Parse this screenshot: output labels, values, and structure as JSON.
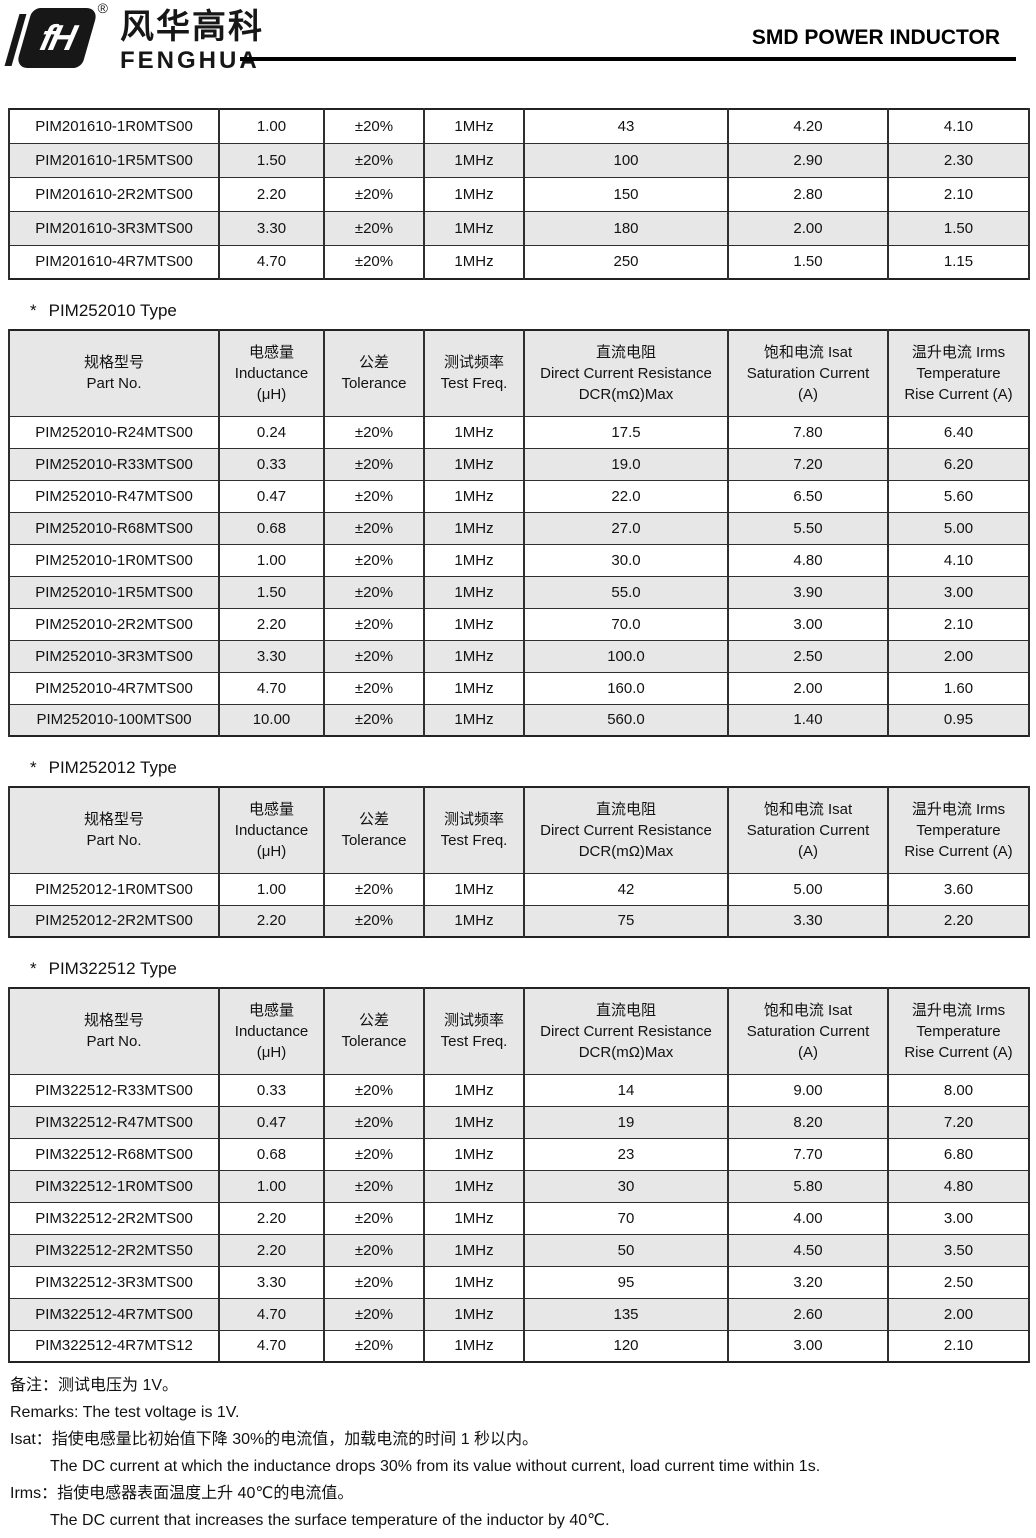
{
  "header": {
    "logo_mark": "fH",
    "registered": "®",
    "brand_cn": "风华高科",
    "brand_en": "FENGHUA",
    "title": "SMD POWER INDUCTOR"
  },
  "cols": {
    "part_cn": "规格型号",
    "part_en": "Part No.",
    "ind_cn": "电感量",
    "ind_en": "Inductance",
    "ind_unit": "(μH)",
    "tol_cn": "公差",
    "tol_en": "Tolerance",
    "freq_cn": "测试频率",
    "freq_en": "Test Freq.",
    "dcr_cn": "直流电阻",
    "dcr_en": "Direct Current Resistance",
    "dcr_unit": "DCR(mΩ)Max",
    "isat_cn": "饱和电流  Isat",
    "isat_en": "Saturation Current",
    "isat_unit": "(A)",
    "irms_cn": "温升电流  Irms",
    "irms_en": "Temperature",
    "irms_unit": "Rise Current (A)"
  },
  "sections": [
    {
      "rows": [
        [
          "PIM201610-1R0MTS00",
          "1.00",
          "±20%",
          "1MHz",
          "43",
          "4.20",
          "4.10"
        ],
        [
          "PIM201610-1R5MTS00",
          "1.50",
          "±20%",
          "1MHz",
          "100",
          "2.90",
          "2.30"
        ],
        [
          "PIM201610-2R2MTS00",
          "2.20",
          "±20%",
          "1MHz",
          "150",
          "2.80",
          "2.10"
        ],
        [
          "PIM201610-3R3MTS00",
          "3.30",
          "±20%",
          "1MHz",
          "180",
          "2.00",
          "1.50"
        ],
        [
          "PIM201610-4R7MTS00",
          "4.70",
          "±20%",
          "1MHz",
          "250",
          "1.50",
          "1.15"
        ]
      ]
    },
    {
      "bullet": "*",
      "heading": "PIM252010 Type",
      "rows": [
        [
          "PIM252010-R24MTS00",
          "0.24",
          "±20%",
          "1MHz",
          "17.5",
          "7.80",
          "6.40"
        ],
        [
          "PIM252010-R33MTS00",
          "0.33",
          "±20%",
          "1MHz",
          "19.0",
          "7.20",
          "6.20"
        ],
        [
          "PIM252010-R47MTS00",
          "0.47",
          "±20%",
          "1MHz",
          "22.0",
          "6.50",
          "5.60"
        ],
        [
          "PIM252010-R68MTS00",
          "0.68",
          "±20%",
          "1MHz",
          "27.0",
          "5.50",
          "5.00"
        ],
        [
          "PIM252010-1R0MTS00",
          "1.00",
          "±20%",
          "1MHz",
          "30.0",
          "4.80",
          "4.10"
        ],
        [
          "PIM252010-1R5MTS00",
          "1.50",
          "±20%",
          "1MHz",
          "55.0",
          "3.90",
          "3.00"
        ],
        [
          "PIM252010-2R2MTS00",
          "2.20",
          "±20%",
          "1MHz",
          "70.0",
          "3.00",
          "2.10"
        ],
        [
          "PIM252010-3R3MTS00",
          "3.30",
          "±20%",
          "1MHz",
          "100.0",
          "2.50",
          "2.00"
        ],
        [
          "PIM252010-4R7MTS00",
          "4.70",
          "±20%",
          "1MHz",
          "160.0",
          "2.00",
          "1.60"
        ],
        [
          "PIM252010-100MTS00",
          "10.00",
          "±20%",
          "1MHz",
          "560.0",
          "1.40",
          "0.95"
        ]
      ]
    },
    {
      "bullet": "*",
      "heading": "PIM252012 Type",
      "rows": [
        [
          "PIM252012-1R0MTS00",
          "1.00",
          "±20%",
          "1MHz",
          "42",
          "5.00",
          "3.60"
        ],
        [
          "PIM252012-2R2MTS00",
          "2.20",
          "±20%",
          "1MHz",
          "75",
          "3.30",
          "2.20"
        ]
      ]
    },
    {
      "bullet": "*",
      "heading": "PIM322512 Type",
      "rows": [
        [
          "PIM322512-R33MTS00",
          "0.33",
          "±20%",
          "1MHz",
          "14",
          "9.00",
          "8.00"
        ],
        [
          "PIM322512-R47MTS00",
          "0.47",
          "±20%",
          "1MHz",
          "19",
          "8.20",
          "7.20"
        ],
        [
          "PIM322512-R68MTS00",
          "0.68",
          "±20%",
          "1MHz",
          "23",
          "7.70",
          "6.80"
        ],
        [
          "PIM322512-1R0MTS00",
          "1.00",
          "±20%",
          "1MHz",
          "30",
          "5.80",
          "4.80"
        ],
        [
          "PIM322512-2R2MTS00",
          "2.20",
          "±20%",
          "1MHz",
          "70",
          "4.00",
          "3.00"
        ],
        [
          "PIM322512-2R2MTS50",
          "2.20",
          "±20%",
          "1MHz",
          "50",
          "4.50",
          "3.50"
        ],
        [
          "PIM322512-3R3MTS00",
          "3.30",
          "±20%",
          "1MHz",
          "95",
          "3.20",
          "2.50"
        ],
        [
          "PIM322512-4R7MTS00",
          "4.70",
          "±20%",
          "1MHz",
          "135",
          "2.60",
          "2.00"
        ],
        [
          "PIM322512-4R7MTS12",
          "4.70",
          "±20%",
          "1MHz",
          "120",
          "3.00",
          "2.10"
        ]
      ]
    }
  ],
  "footnotes": [
    "备注：测试电压为 1V。",
    "Remarks: The test voltage is 1V.",
    "Isat：指使电感量比初始值下降 30%的电流值，加载电流的时间 1 秒以内。",
    "The DC current at which the inductance drops 30% from its value without current, load current time within 1s.",
    "Irms：指使电感器表面温度上升 40℃的电流值。",
    "The DC current that increases the surface temperature of the inductor by 40℃."
  ],
  "colors": {
    "row_stripe": "#e7e7e7",
    "header_bg": "#e7e7e7",
    "border": "#2e2e2e",
    "rule": "#000000"
  }
}
